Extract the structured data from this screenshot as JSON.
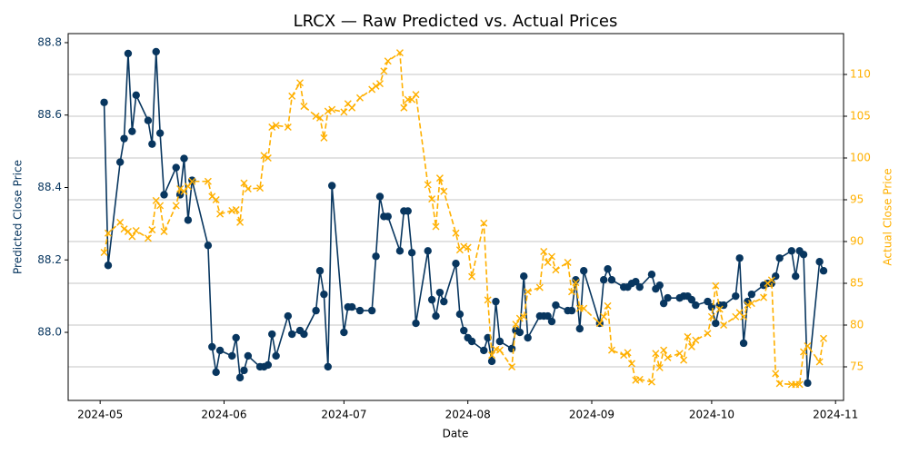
{
  "chart_data": {
    "type": "line",
    "title": "LRCX — Raw Predicted vs. Actual Prices",
    "x_label": "Date",
    "y_label": "Predicted Close Price",
    "y2_label": "Actual Close Price",
    "x": [
      "2024-05-02",
      "2024-05-03",
      "2024-05-06",
      "2024-05-07",
      "2024-05-08",
      "2024-05-09",
      "2024-05-10",
      "2024-05-13",
      "2024-05-14",
      "2024-05-15",
      "2024-05-16",
      "2024-05-17",
      "2024-05-20",
      "2024-05-21",
      "2024-05-22",
      "2024-05-23",
      "2024-05-24",
      "2024-05-28",
      "2024-05-29",
      "2024-05-30",
      "2024-05-31",
      "2024-06-03",
      "2024-06-04",
      "2024-06-05",
      "2024-06-06",
      "2024-06-07",
      "2024-06-10",
      "2024-06-11",
      "2024-06-12",
      "2024-06-13",
      "2024-06-14",
      "2024-06-17",
      "2024-06-18",
      "2024-06-20",
      "2024-06-21",
      "2024-06-24",
      "2024-06-25",
      "2024-06-26",
      "2024-06-27",
      "2024-06-28",
      "2024-07-01",
      "2024-07-02",
      "2024-07-03",
      "2024-07-05",
      "2024-07-08",
      "2024-07-09",
      "2024-07-10",
      "2024-07-11",
      "2024-07-12",
      "2024-07-15",
      "2024-07-16",
      "2024-07-17",
      "2024-07-18",
      "2024-07-19",
      "2024-07-22",
      "2024-07-23",
      "2024-07-24",
      "2024-07-25",
      "2024-07-26",
      "2024-07-29",
      "2024-07-30",
      "2024-07-31",
      "2024-08-01",
      "2024-08-02",
      "2024-08-05",
      "2024-08-06",
      "2024-08-07",
      "2024-08-08",
      "2024-08-09",
      "2024-08-12",
      "2024-08-13",
      "2024-08-14",
      "2024-08-15",
      "2024-08-16",
      "2024-08-19",
      "2024-08-20",
      "2024-08-21",
      "2024-08-22",
      "2024-08-23",
      "2024-08-26",
      "2024-08-27",
      "2024-08-28",
      "2024-08-29",
      "2024-08-30",
      "2024-09-03",
      "2024-09-04",
      "2024-09-05",
      "2024-09-06",
      "2024-09-09",
      "2024-09-10",
      "2024-09-11",
      "2024-09-12",
      "2024-09-13",
      "2024-09-16",
      "2024-09-17",
      "2024-09-18",
      "2024-09-19",
      "2024-09-20",
      "2024-09-23",
      "2024-09-24",
      "2024-09-25",
      "2024-09-26",
      "2024-09-27",
      "2024-09-30",
      "2024-10-01",
      "2024-10-02",
      "2024-10-03",
      "2024-10-04",
      "2024-10-07",
      "2024-10-08",
      "2024-10-09",
      "2024-10-10",
      "2024-10-11",
      "2024-10-14",
      "2024-10-15",
      "2024-10-16",
      "2024-10-17",
      "2024-10-18",
      "2024-10-21",
      "2024-10-22",
      "2024-10-23",
      "2024-10-24",
      "2024-10-25",
      "2024-10-28",
      "2024-10-29"
    ],
    "series": [
      {
        "name": "Predicted Close Price",
        "color": "#08365f",
        "marker": "circle",
        "axis": "y",
        "values": [
          88.635,
          88.185,
          88.47,
          88.535,
          88.77,
          88.555,
          88.655,
          88.585,
          88.52,
          88.775,
          88.55,
          88.38,
          88.455,
          88.38,
          88.48,
          88.31,
          88.42,
          88.24,
          87.96,
          87.89,
          87.95,
          87.935,
          87.985,
          87.875,
          87.895,
          87.935,
          87.905,
          87.905,
          87.91,
          87.995,
          87.935,
          88.045,
          87.995,
          88.005,
          87.995,
          88.06,
          88.17,
          88.105,
          87.905,
          88.405,
          88.0,
          88.07,
          88.07,
          88.06,
          88.06,
          88.21,
          88.375,
          88.32,
          88.32,
          88.225,
          88.335,
          88.335,
          88.22,
          88.025,
          88.225,
          88.09,
          88.045,
          88.11,
          88.085,
          88.19,
          88.05,
          88.005,
          87.985,
          87.975,
          87.95,
          87.985,
          87.92,
          88.085,
          87.975,
          87.955,
          88.005,
          88.0,
          88.155,
          87.985,
          88.045,
          88.045,
          88.045,
          88.03,
          88.075,
          88.06,
          88.06,
          88.145,
          88.01,
          88.17,
          88.025,
          88.145,
          88.175,
          88.145,
          88.125,
          88.125,
          88.135,
          88.14,
          88.125,
          88.16,
          88.12,
          88.13,
          88.08,
          88.095,
          88.095,
          88.1,
          88.1,
          88.09,
          88.075,
          88.085,
          88.07,
          88.025,
          88.075,
          88.075,
          88.1,
          88.205,
          87.97,
          88.085,
          88.105,
          88.13,
          88.135,
          88.135,
          88.155,
          88.205,
          88.225,
          88.155,
          88.225,
          88.215,
          87.86,
          88.195,
          88.17
        ]
      },
      {
        "name": "Actual Close Price",
        "color": "#ffb000",
        "marker": "x",
        "dashed": true,
        "axis": "y2",
        "values": [
          88.7,
          91.0,
          92.3,
          91.5,
          91.2,
          90.6,
          91.3,
          90.4,
          91.4,
          94.9,
          94.3,
          91.2,
          94.3,
          96.3,
          96.0,
          96.6,
          97.2,
          97.2,
          95.4,
          95.0,
          93.3,
          93.7,
          93.8,
          92.3,
          97.0,
          96.3,
          96.4,
          100.3,
          100.0,
          103.7,
          103.9,
          103.7,
          107.4,
          109.0,
          106.2,
          105.0,
          104.8,
          102.4,
          105.6,
          105.8,
          105.5,
          106.5,
          106.0,
          107.2,
          108.2,
          108.6,
          108.9,
          110.4,
          111.6,
          112.6,
          106.0,
          107.0,
          107.0,
          107.6,
          96.8,
          95.1,
          91.8,
          97.6,
          96.0,
          91.0,
          89.0,
          89.4,
          89.3,
          85.8,
          92.2,
          83.0,
          76.4,
          77.1,
          77.0,
          75.0,
          80.1,
          80.8,
          81.0,
          84.0,
          84.5,
          88.8,
          87.5,
          88.2,
          86.6,
          87.5,
          84.0,
          85.1,
          82.0,
          82.0,
          80.2,
          81.0,
          82.3,
          77.0,
          76.4,
          76.7,
          75.4,
          73.4,
          73.5,
          73.2,
          76.6,
          74.9,
          77.0,
          76.1,
          76.6,
          75.8,
          78.6,
          77.4,
          78.2,
          79.0,
          81.0,
          84.7,
          81.9,
          80.0,
          81.0,
          81.5,
          81.0,
          82.4,
          82.6,
          83.3,
          85.0,
          85.4,
          74.2,
          73.0,
          72.9,
          72.9,
          72.9,
          76.8,
          77.5,
          75.6,
          78.4
        ]
      }
    ],
    "xlim": [
      "2024-04-23",
      "2024-11-03"
    ],
    "xticks": [
      "2024-05",
      "2024-06",
      "2024-07",
      "2024-08",
      "2024-09",
      "2024-10",
      "2024-11"
    ],
    "ylim": [
      87.812,
      88.825
    ],
    "yticks": [
      {
        "value": 88,
        "label": "88.0"
      },
      88.2,
      88.4,
      88.6,
      88.8
    ],
    "y2lim": [
      70.98,
      114.89
    ],
    "y2ticks": [
      75,
      80,
      85,
      90,
      95,
      100,
      105,
      110
    ],
    "grid": true,
    "grid_axis": "y2"
  }
}
